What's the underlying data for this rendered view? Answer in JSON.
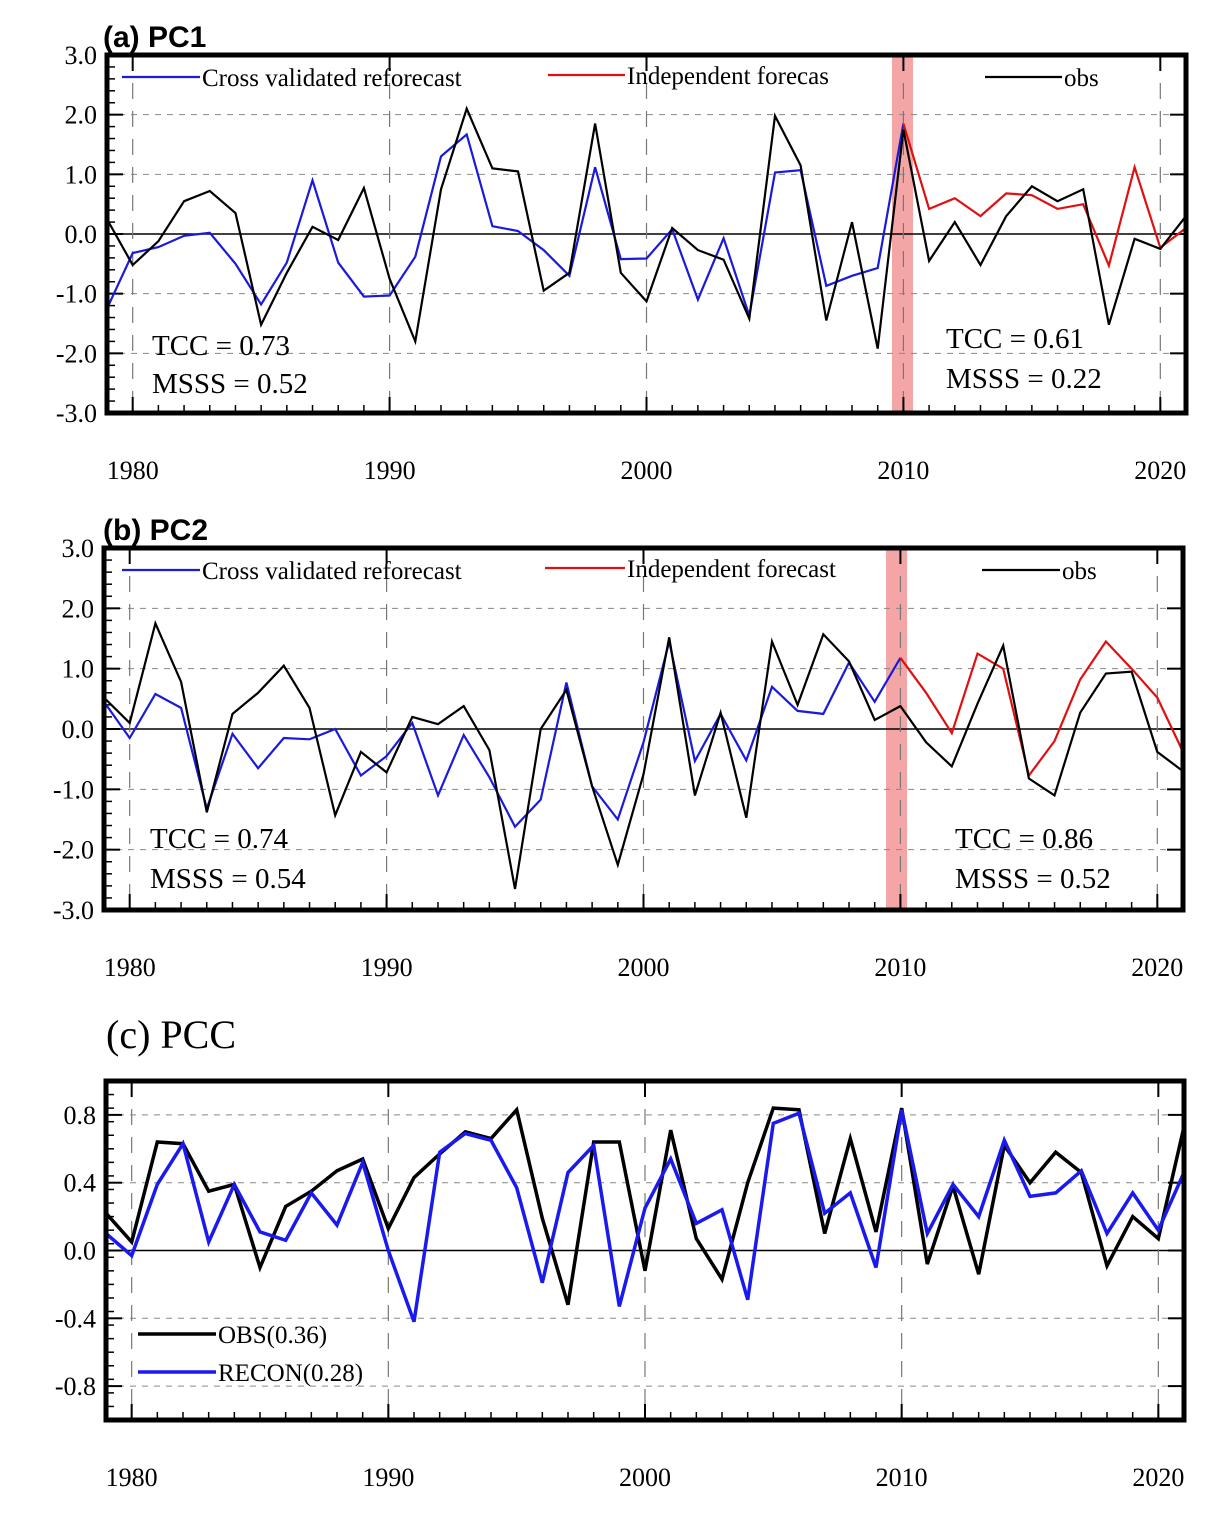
{
  "chart_data": [
    {
      "type": "line",
      "title": "(a) PC1",
      "xlim": [
        1979,
        2021
      ],
      "ylim": [
        -3,
        3
      ],
      "yticks": [
        "3.0",
        "2.0",
        "1.0",
        "0.0",
        "-1.0",
        "-2.0",
        "-3.0"
      ],
      "xticks": [
        "1980",
        "1990",
        "2000",
        "2010",
        "2020"
      ],
      "grid": true,
      "legend_position": "top",
      "highlight_year": 2010,
      "stats_left": [
        "TCC = 0.73",
        "MSSS = 0.52"
      ],
      "stats_right": [
        "TCC = 0.61",
        "MSSS = 0.22"
      ],
      "series": [
        {
          "name": "Cross validated reforecast",
          "color": "#1a1adc",
          "x": [
            1979,
            1980,
            1981,
            1982,
            1983,
            1984,
            1985,
            1986,
            1987,
            1988,
            1989,
            1990,
            1991,
            1992,
            1993,
            1994,
            1995,
            1996,
            1997,
            1998,
            1999,
            2000,
            2001,
            2002,
            2003,
            2004,
            2005,
            2006,
            2007,
            2008,
            2009,
            2010
          ],
          "values": [
            -1.25,
            -0.32,
            -0.22,
            -0.03,
            0.02,
            -0.5,
            -1.18,
            -0.48,
            0.9,
            -0.48,
            -1.05,
            -1.03,
            -0.38,
            1.3,
            1.67,
            0.13,
            0.05,
            -0.27,
            -0.7,
            1.12,
            -0.42,
            -0.41,
            0.08,
            -1.1,
            -0.07,
            -1.37,
            1.03,
            1.07,
            -0.87,
            -0.7,
            -0.57,
            1.85
          ]
        },
        {
          "name": "Independent forecas",
          "color": "#e01010",
          "x": [
            2010,
            2011,
            2012,
            2013,
            2014,
            2015,
            2016,
            2017,
            2018,
            2019,
            2020,
            2021
          ],
          "values": [
            1.85,
            0.42,
            0.6,
            0.3,
            0.68,
            0.65,
            0.42,
            0.5,
            -0.53,
            1.12,
            -0.23,
            0.1
          ]
        },
        {
          "name": "obs",
          "color": "#000000",
          "x": [
            1979,
            1980,
            1981,
            1982,
            1983,
            1984,
            1985,
            1986,
            1987,
            1988,
            1989,
            1990,
            1991,
            1992,
            1993,
            1994,
            1995,
            1996,
            1997,
            1998,
            1999,
            2000,
            2001,
            2002,
            2003,
            2004,
            2005,
            2006,
            2007,
            2008,
            2009,
            2010,
            2011,
            2012,
            2013,
            2014,
            2015,
            2016,
            2017,
            2018,
            2019,
            2020,
            2021
          ],
          "values": [
            0.25,
            -0.52,
            -0.12,
            0.55,
            0.72,
            0.35,
            -1.52,
            -0.65,
            0.12,
            -0.1,
            0.77,
            -0.75,
            -1.8,
            0.75,
            2.1,
            1.1,
            1.05,
            -0.95,
            -0.65,
            1.85,
            -0.65,
            -1.13,
            0.1,
            -0.27,
            -0.43,
            -1.42,
            1.98,
            1.15,
            -1.45,
            0.2,
            -1.92,
            1.75,
            -0.45,
            0.2,
            -0.52,
            0.3,
            0.8,
            0.55,
            0.75,
            -1.52,
            -0.08,
            -0.25,
            0.3
          ]
        }
      ]
    },
    {
      "type": "line",
      "title": "(b) PC2",
      "xlim": [
        1979,
        2021
      ],
      "ylim": [
        -3,
        3
      ],
      "yticks": [
        "3.0",
        "2.0",
        "1.0",
        "0.0",
        "-1.0",
        "-2.0",
        "-3.0"
      ],
      "xticks": [
        "1980",
        "1990",
        "2000",
        "2010",
        "2020"
      ],
      "grid": true,
      "legend_position": "top",
      "highlight_year": 2010,
      "stats_left": [
        "TCC = 0.74",
        "MSSS = 0.54"
      ],
      "stats_right": [
        "TCC = 0.86",
        "MSSS = 0.52"
      ],
      "series": [
        {
          "name": "Cross validated reforecast",
          "color": "#1a1adc",
          "x": [
            1979,
            1980,
            1981,
            1982,
            1983,
            1984,
            1985,
            1986,
            1987,
            1988,
            1989,
            1990,
            1991,
            1992,
            1993,
            1994,
            1995,
            1996,
            1997,
            1998,
            1999,
            2000,
            2001,
            2002,
            2003,
            2004,
            2005,
            2006,
            2007,
            2008,
            2009,
            2010
          ],
          "values": [
            0.45,
            -0.15,
            0.58,
            0.35,
            -1.32,
            -0.08,
            -0.65,
            -0.15,
            -0.17,
            0.0,
            -0.77,
            -0.45,
            0.1,
            -1.1,
            -0.1,
            -0.8,
            -1.62,
            -1.17,
            0.77,
            -0.95,
            -1.5,
            -0.22,
            1.45,
            -0.53,
            0.25,
            -0.52,
            0.7,
            0.3,
            0.25,
            1.1,
            0.45,
            1.18
          ]
        },
        {
          "name": "Independent forecast",
          "color": "#e01010",
          "x": [
            2010,
            2011,
            2012,
            2013,
            2014,
            2015,
            2016,
            2017,
            2018,
            2019,
            2020,
            2021
          ],
          "values": [
            1.18,
            0.6,
            -0.07,
            1.25,
            1.0,
            -0.77,
            -0.2,
            0.82,
            1.45,
            1.0,
            0.52,
            -0.38
          ]
        },
        {
          "name": "obs",
          "color": "#000000",
          "x": [
            1979,
            1980,
            1981,
            1982,
            1983,
            1984,
            1985,
            1986,
            1987,
            1988,
            1989,
            1990,
            1991,
            1992,
            1993,
            1994,
            1995,
            1996,
            1997,
            1998,
            1999,
            2000,
            2001,
            2002,
            2003,
            2004,
            2005,
            2006,
            2007,
            2008,
            2009,
            2010,
            2011,
            2012,
            2013,
            2014,
            2015,
            2016,
            2017,
            2018,
            2019,
            2020,
            2021
          ],
          "values": [
            0.52,
            0.1,
            1.75,
            0.78,
            -1.38,
            0.25,
            0.6,
            1.05,
            0.35,
            -1.43,
            -0.38,
            -0.72,
            0.2,
            0.08,
            0.38,
            -0.35,
            -2.65,
            0.0,
            0.65,
            -0.95,
            -2.25,
            -0.75,
            1.52,
            -1.1,
            0.27,
            -1.47,
            1.45,
            0.4,
            1.57,
            1.12,
            0.15,
            0.38,
            -0.22,
            -0.62,
            0.42,
            1.38,
            -0.82,
            -1.1,
            0.27,
            0.92,
            0.95,
            -0.38,
            -0.7
          ]
        }
      ]
    },
    {
      "type": "line",
      "title": "(c) PCC",
      "xlim": [
        1979,
        2021
      ],
      "ylim": [
        -1.0,
        1.0
      ],
      "yticks": [
        "0.8",
        "0.4",
        "0.0",
        "-0.4",
        "-0.8"
      ],
      "xticks": [
        "1980",
        "1990",
        "2000",
        "2010",
        "2020"
      ],
      "grid": true,
      "legend_position": "bottom-left",
      "series": [
        {
          "name": "OBS(0.36)",
          "color": "#000000",
          "x": [
            1979,
            1980,
            1981,
            1982,
            1983,
            1984,
            1985,
            1986,
            1987,
            1988,
            1989,
            1990,
            1991,
            1992,
            1993,
            1994,
            1995,
            1996,
            1997,
            1998,
            1999,
            2000,
            2001,
            2002,
            2003,
            2004,
            2005,
            2006,
            2007,
            2008,
            2009,
            2010,
            2011,
            2012,
            2013,
            2014,
            2015,
            2016,
            2017,
            2018,
            2019,
            2020,
            2021
          ],
          "values": [
            0.22,
            0.05,
            0.64,
            0.63,
            0.35,
            0.39,
            -0.1,
            0.26,
            0.35,
            0.47,
            0.54,
            0.13,
            0.43,
            0.57,
            0.7,
            0.66,
            0.83,
            0.19,
            -0.32,
            0.64,
            0.64,
            -0.12,
            0.71,
            0.07,
            -0.17,
            0.4,
            0.84,
            0.83,
            0.1,
            0.66,
            0.11,
            0.84,
            -0.08,
            0.38,
            -0.14,
            0.62,
            0.4,
            0.58,
            0.46,
            -0.09,
            0.2,
            0.07,
            0.73
          ]
        },
        {
          "name": "RECON(0.28)",
          "color": "#1a1aee",
          "x": [
            1979,
            1980,
            1981,
            1982,
            1983,
            1984,
            1985,
            1986,
            1987,
            1988,
            1989,
            1990,
            1991,
            1992,
            1993,
            1994,
            1995,
            1996,
            1997,
            1998,
            1999,
            2000,
            2001,
            2002,
            2003,
            2004,
            2005,
            2006,
            2007,
            2008,
            2009,
            2010,
            2011,
            2012,
            2013,
            2014,
            2015,
            2016,
            2017,
            2018,
            2019,
            2020,
            2021
          ],
          "values": [
            0.1,
            -0.03,
            0.39,
            0.63,
            0.05,
            0.39,
            0.11,
            0.06,
            0.34,
            0.15,
            0.52,
            0.0,
            -0.42,
            0.58,
            0.69,
            0.65,
            0.37,
            -0.19,
            0.46,
            0.62,
            -0.33,
            0.25,
            0.54,
            0.16,
            0.24,
            -0.29,
            0.75,
            0.81,
            0.22,
            0.34,
            -0.1,
            0.83,
            0.1,
            0.39,
            0.2,
            0.65,
            0.32,
            0.34,
            0.47,
            0.1,
            0.34,
            0.12,
            0.46
          ]
        }
      ]
    }
  ]
}
